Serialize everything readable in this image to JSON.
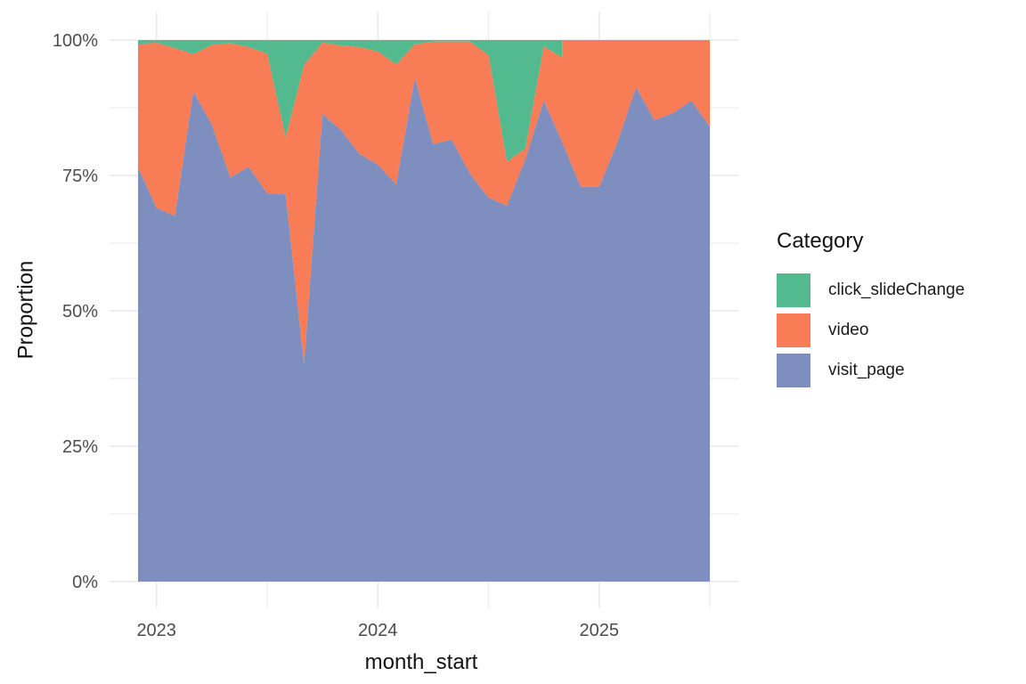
{
  "chart_data": {
    "type": "area",
    "stacking": "fill",
    "title": "",
    "xlabel": "month_start",
    "ylabel": "Proportion",
    "ylim": [
      0,
      100
    ],
    "grid": true,
    "grid_color": "#EBEBEB",
    "background_color": "#FFFFFF",
    "yticks": [
      "0%",
      "25%",
      "50%",
      "75%",
      "100%"
    ],
    "ytick_values": [
      0,
      25,
      50,
      75,
      100
    ],
    "ytick_minor_values": [
      12.5,
      37.5,
      62.5,
      87.5
    ],
    "xticks": [
      "2023",
      "2024",
      "2025"
    ],
    "x_months": [
      "2022-12",
      "2023-01",
      "2023-02",
      "2023-03",
      "2023-04",
      "2023-05",
      "2023-06",
      "2023-07",
      "2023-08",
      "2023-09",
      "2023-10",
      "2023-11",
      "2023-12",
      "2024-01",
      "2024-02",
      "2024-03",
      "2024-04",
      "2024-05",
      "2024-06",
      "2024-07",
      "2024-08",
      "2024-09",
      "2024-10",
      "2024-11",
      "2024-12",
      "2025-01",
      "2025-02",
      "2025-03",
      "2025-04",
      "2025-05",
      "2025-06",
      "2025-07"
    ],
    "series": [
      {
        "name": "click_slideChange",
        "color": "#53B98F",
        "values": [
          0.8,
          0.5,
          1.5,
          2.6,
          0.9,
          0.6,
          1.3,
          2.5,
          18.0,
          4.6,
          0.5,
          1.0,
          1.3,
          2.1,
          4.5,
          0.8,
          0.3,
          0.3,
          0.3,
          2.8,
          22.5,
          20.0,
          1.2,
          3.2,
          null,
          null,
          null,
          null,
          null,
          null,
          null,
          null
        ]
      },
      {
        "name": "video",
        "color": "#F87C55",
        "values": [
          22.7,
          30.5,
          31.0,
          6.9,
          14.7,
          24.8,
          22.1,
          25.8,
          10.5,
          55.4,
          13.2,
          15.6,
          19.7,
          20.9,
          22.2,
          6.2,
          18.9,
          18.1,
          24.4,
          26.3,
          8.1,
          2.0,
          10.0,
          15.7,
          27.1,
          27.1,
          18.8,
          8.7,
          14.8,
          13.5,
          11.2,
          16.0
        ]
      },
      {
        "name": "visit_page",
        "color": "#7E8EBF",
        "values": [
          76.5,
          69.0,
          67.5,
          90.5,
          84.4,
          74.6,
          76.6,
          71.7,
          71.5,
          40.0,
          86.3,
          83.4,
          79.0,
          77.0,
          73.3,
          93.0,
          80.8,
          81.6,
          75.3,
          70.9,
          69.4,
          78.0,
          88.8,
          81.1,
          72.9,
          72.9,
          81.2,
          91.3,
          85.2,
          86.5,
          88.8,
          84.0
        ]
      }
    ],
    "legend": {
      "title": "Category",
      "position": "right",
      "entries": [
        {
          "label": "click_slideChange"
        },
        {
          "label": "video"
        },
        {
          "label": "visit_page"
        }
      ]
    }
  }
}
